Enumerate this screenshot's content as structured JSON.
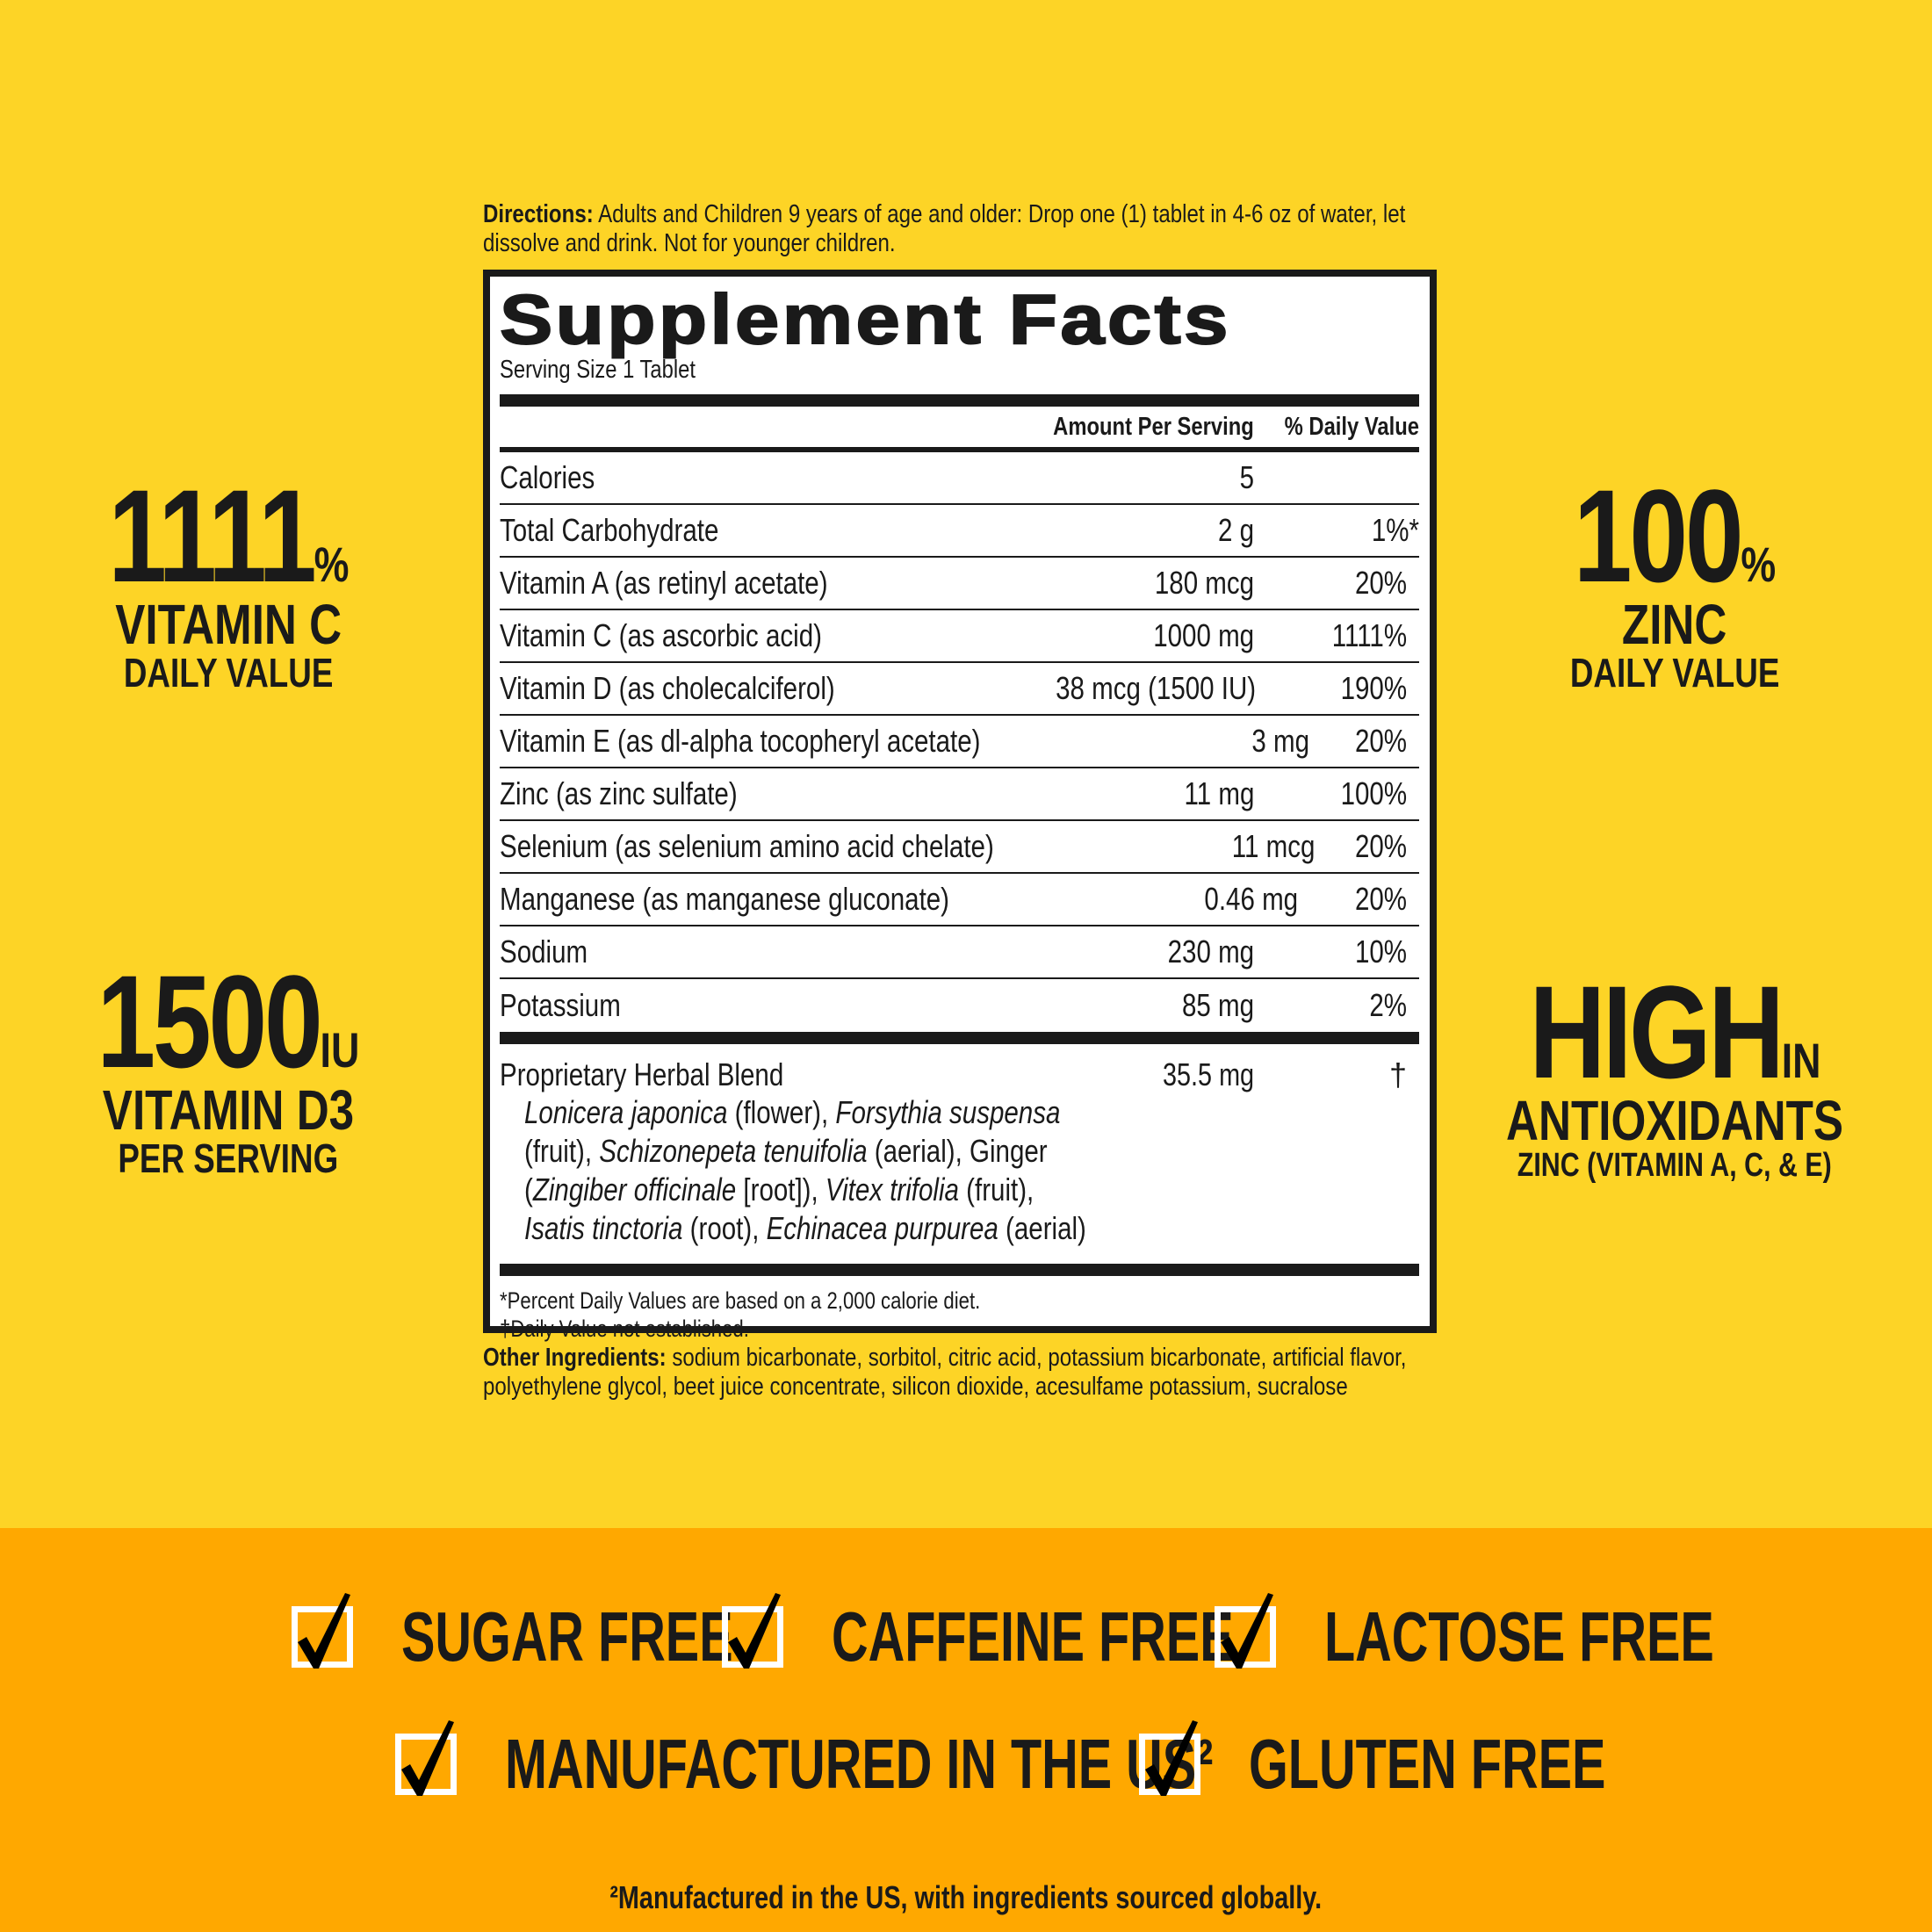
{
  "directions": {
    "label": "Directions:",
    "text": " Adults and Children 9 years of age and older: Drop one (1) tablet in 4-6 oz of water, let dissolve and drink. Not for younger children."
  },
  "facts": {
    "title": "Supplement Facts",
    "serving": "Serving Size 1 Tablet",
    "col_amount": "Amount Per Serving",
    "col_dv": "% Daily Value",
    "rows": [
      {
        "name": "Calories",
        "amount": "5",
        "dv": ""
      },
      {
        "name": "Total Carbohydrate",
        "amount": "2 g",
        "dv": "1%*"
      },
      {
        "name": "Vitamin A (as retinyl acetate)",
        "amount": "180 mcg",
        "dv": "20%"
      },
      {
        "name": "Vitamin C (as ascorbic acid)",
        "amount": "1000 mg",
        "dv": "1111%"
      },
      {
        "name": "Vitamin D (as cholecalciferol)",
        "amount": "38 mcg (1500 IU)",
        "dv": "190%"
      },
      {
        "name": "Vitamin E (as dl-alpha tocopheryl acetate)",
        "amount": "3 mg",
        "dv": "20%"
      },
      {
        "name": "Zinc (as zinc sulfate)",
        "amount": "11 mg",
        "dv": "100%"
      },
      {
        "name": "Selenium (as selenium amino acid chelate)",
        "amount": "11 mcg",
        "dv": "20%"
      },
      {
        "name": "Manganese (as manganese gluconate)",
        "amount": "0.46 mg",
        "dv": "20%"
      },
      {
        "name": "Sodium",
        "amount": "230 mg",
        "dv": "10%"
      },
      {
        "name": "Potassium",
        "amount": "85 mg",
        "dv": "2%"
      }
    ],
    "blend": {
      "name": "Proprietary Herbal Blend",
      "amount": "35.5 mg",
      "dv": "†",
      "lines": [
        "Lonicera japonica (flower), Forsythia suspensa",
        "(fruit), Schizonepeta tenuifolia (aerial), Ginger",
        "(Zingiber officinale [root]), Vitex trifolia (fruit),",
        "Isatis tinctoria (root), Echinacea purpurea (aerial)"
      ]
    },
    "footnote1": "*Percent Daily Values are based on a 2,000 calorie diet.",
    "footnote2": "†Daily Value not established."
  },
  "other": {
    "label": "Other Ingredients:",
    "text": " sodium bicarbonate, sorbitol, citric acid, potassium bicarbonate, artificial flavor, polyethylene glycol, beet juice concentrate, silicon dioxide, acesulfame potassium, sucralose"
  },
  "callouts": {
    "vitc": {
      "value": "1111",
      "unit": "%",
      "line1": "VITAMIN C",
      "line2": "DAILY VALUE"
    },
    "vitd": {
      "value": "1500",
      "unit": "IU",
      "line1": "VITAMIN D3",
      "line2": "PER SERVING"
    },
    "zinc": {
      "value": "100",
      "unit": "%",
      "line1": "ZINC",
      "line2": "DAILY VALUE"
    },
    "anti": {
      "value": "HIGH",
      "unit": "IN",
      "line1": "ANTIOXIDANTS",
      "line2": "ZINC (VITAMIN A, C, & E)"
    }
  },
  "badges": [
    "SUGAR FREE",
    "CAFFEINE FREE",
    "LACTOSE FREE",
    "MANUFACTURED IN THE US²",
    "GLUTEN FREE"
  ],
  "footnote": "²Manufactured in the US, with ingredients sourced globally.",
  "colors": {
    "background": "#FDD426",
    "band": "#FFA800",
    "text": "#1a1a1a"
  }
}
